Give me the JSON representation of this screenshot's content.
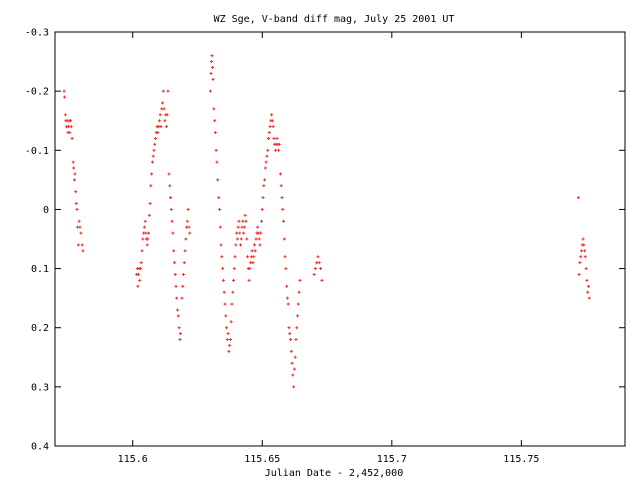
{
  "chart_data": {
    "type": "scatter",
    "title": "WZ Sge, V-band diff mag, July 25 2001 UT",
    "xlabel": "Julian Date - 2,452,000",
    "ylabel": "",
    "xlim": [
      115.57,
      115.79
    ],
    "ylim": [
      -0.3,
      0.4
    ],
    "y_inverted": true,
    "grid": false,
    "x_ticks": [
      115.6,
      115.65,
      115.7,
      115.75
    ],
    "x_tick_labels": [
      "115.6",
      "115.65",
      "115.7",
      "115.75"
    ],
    "y_ticks": [
      -0.3,
      -0.2,
      -0.1,
      0,
      0.1,
      0.2,
      0.3,
      0.4
    ],
    "y_tick_labels": [
      "-0.3",
      "-0.2",
      "-0.1",
      "0",
      "0.1",
      "0.2",
      "0.3",
      "0.4"
    ],
    "marker_color": "#e8322f",
    "series": [
      {
        "points": [
          [
            115.5735,
            -0.2
          ],
          [
            115.5737,
            -0.19
          ],
          [
            115.574,
            -0.16
          ],
          [
            115.5742,
            -0.15
          ],
          [
            115.5745,
            -0.14
          ],
          [
            115.5747,
            -0.15
          ],
          [
            115.575,
            -0.13
          ],
          [
            115.5752,
            -0.14
          ],
          [
            115.5755,
            -0.15
          ],
          [
            115.5757,
            -0.13
          ],
          [
            115.576,
            -0.15
          ],
          [
            115.5763,
            -0.14
          ],
          [
            115.5766,
            -0.12
          ],
          [
            115.577,
            -0.08
          ],
          [
            115.5772,
            -0.07
          ],
          [
            115.5775,
            -0.05
          ],
          [
            115.5777,
            -0.06
          ],
          [
            115.578,
            -0.03
          ],
          [
            115.5782,
            -0.01
          ],
          [
            115.5785,
            0.0
          ],
          [
            115.5787,
            0.03
          ],
          [
            115.579,
            0.06
          ],
          [
            115.5793,
            0.02
          ],
          [
            115.5796,
            0.03
          ],
          [
            115.58,
            0.04
          ],
          [
            115.5805,
            0.06
          ],
          [
            115.5808,
            0.07
          ],
          [
            115.6015,
            0.11
          ],
          [
            115.6018,
            0.1
          ],
          [
            115.602,
            0.13
          ],
          [
            115.6022,
            0.11
          ],
          [
            115.6025,
            0.1
          ],
          [
            115.6027,
            0.12
          ],
          [
            115.603,
            0.1
          ],
          [
            115.6033,
            0.09
          ],
          [
            115.6036,
            0.07
          ],
          [
            115.6039,
            0.05
          ],
          [
            115.6042,
            0.04
          ],
          [
            115.6045,
            0.03
          ],
          [
            115.6048,
            0.02
          ],
          [
            115.605,
            0.04
          ],
          [
            115.6053,
            0.05
          ],
          [
            115.6056,
            0.06
          ],
          [
            115.6058,
            0.05
          ],
          [
            115.6061,
            0.04
          ],
          [
            115.6064,
            0.01
          ],
          [
            115.6067,
            -0.01
          ],
          [
            115.607,
            -0.04
          ],
          [
            115.6073,
            -0.06
          ],
          [
            115.6076,
            -0.08
          ],
          [
            115.6079,
            -0.09
          ],
          [
            115.6082,
            -0.1
          ],
          [
            115.6085,
            -0.11
          ],
          [
            115.6088,
            -0.12
          ],
          [
            115.6091,
            -0.13
          ],
          [
            115.6094,
            -0.14
          ],
          [
            115.6097,
            -0.13
          ],
          [
            115.61,
            -0.14
          ],
          [
            115.6103,
            -0.15
          ],
          [
            115.6106,
            -0.16
          ],
          [
            115.6109,
            -0.14
          ],
          [
            115.6112,
            -0.17
          ],
          [
            115.6115,
            -0.18
          ],
          [
            115.6118,
            -0.2
          ],
          [
            115.6121,
            -0.17
          ],
          [
            115.6124,
            -0.15
          ],
          [
            115.6127,
            -0.16
          ],
          [
            115.613,
            -0.14
          ],
          [
            115.6133,
            -0.16
          ],
          [
            115.6136,
            -0.2
          ],
          [
            115.614,
            -0.06
          ],
          [
            115.6143,
            -0.04
          ],
          [
            115.6146,
            -0.02
          ],
          [
            115.6149,
            0.0
          ],
          [
            115.6152,
            0.02
          ],
          [
            115.6155,
            0.04
          ],
          [
            115.6158,
            0.07
          ],
          [
            115.6161,
            0.09
          ],
          [
            115.6164,
            0.11
          ],
          [
            115.6167,
            0.13
          ],
          [
            115.617,
            0.15
          ],
          [
            115.6173,
            0.17
          ],
          [
            115.6176,
            0.18
          ],
          [
            115.6179,
            0.2
          ],
          [
            115.6182,
            0.22
          ],
          [
            115.6184,
            0.21
          ],
          [
            115.619,
            0.15
          ],
          [
            115.6193,
            0.13
          ],
          [
            115.6196,
            0.11
          ],
          [
            115.6199,
            0.09
          ],
          [
            115.6202,
            0.07
          ],
          [
            115.6205,
            0.05
          ],
          [
            115.6208,
            0.03
          ],
          [
            115.6211,
            0.02
          ],
          [
            115.6214,
            0.0
          ],
          [
            115.6217,
            0.03
          ],
          [
            115.622,
            0.04
          ],
          [
            115.63,
            -0.2
          ],
          [
            115.6302,
            -0.23
          ],
          [
            115.6304,
            -0.25
          ],
          [
            115.6306,
            -0.26
          ],
          [
            115.6308,
            -0.24
          ],
          [
            115.631,
            -0.22
          ],
          [
            115.6313,
            -0.17
          ],
          [
            115.6316,
            -0.15
          ],
          [
            115.6319,
            -0.13
          ],
          [
            115.6322,
            -0.1
          ],
          [
            115.6325,
            -0.08
          ],
          [
            115.6328,
            -0.05
          ],
          [
            115.6332,
            -0.02
          ],
          [
            115.6335,
            0.0
          ],
          [
            115.6338,
            0.03
          ],
          [
            115.6341,
            0.06
          ],
          [
            115.6344,
            0.08
          ],
          [
            115.6347,
            0.1
          ],
          [
            115.635,
            0.12
          ],
          [
            115.6353,
            0.14
          ],
          [
            115.6356,
            0.16
          ],
          [
            115.6359,
            0.18
          ],
          [
            115.6362,
            0.2
          ],
          [
            115.6365,
            0.22
          ],
          [
            115.6368,
            0.21
          ],
          [
            115.6371,
            0.24
          ],
          [
            115.6374,
            0.23
          ],
          [
            115.6377,
            0.22
          ],
          [
            115.638,
            0.19
          ],
          [
            115.6383,
            0.16
          ],
          [
            115.6386,
            0.14
          ],
          [
            115.6389,
            0.12
          ],
          [
            115.6392,
            0.1
          ],
          [
            115.6395,
            0.08
          ],
          [
            115.6398,
            0.06
          ],
          [
            115.6401,
            0.04
          ],
          [
            115.6404,
            0.05
          ],
          [
            115.6407,
            0.03
          ],
          [
            115.641,
            0.02
          ],
          [
            115.6413,
            0.04
          ],
          [
            115.6416,
            0.06
          ],
          [
            115.6419,
            0.05
          ],
          [
            115.6422,
            0.03
          ],
          [
            115.6425,
            0.02
          ],
          [
            115.6428,
            0.04
          ],
          [
            115.6431,
            0.03
          ],
          [
            115.6434,
            0.01
          ],
          [
            115.6437,
            0.02
          ],
          [
            115.644,
            0.05
          ],
          [
            115.6443,
            0.08
          ],
          [
            115.6446,
            0.1
          ],
          [
            115.6449,
            0.12
          ],
          [
            115.6452,
            0.1
          ],
          [
            115.6455,
            0.09
          ],
          [
            115.6458,
            0.08
          ],
          [
            115.6461,
            0.07
          ],
          [
            115.6464,
            0.09
          ],
          [
            115.6467,
            0.08
          ],
          [
            115.647,
            0.06
          ],
          [
            115.6473,
            0.07
          ],
          [
            115.6476,
            0.05
          ],
          [
            115.6479,
            0.04
          ],
          [
            115.6482,
            0.03
          ],
          [
            115.6485,
            0.04
          ],
          [
            115.6488,
            0.05
          ],
          [
            115.6491,
            0.06
          ],
          [
            115.6494,
            0.04
          ],
          [
            115.6497,
            0.02
          ],
          [
            115.65,
            0.0
          ],
          [
            115.6503,
            -0.02
          ],
          [
            115.6506,
            -0.04
          ],
          [
            115.6509,
            -0.05
          ],
          [
            115.6512,
            -0.07
          ],
          [
            115.6515,
            -0.08
          ],
          [
            115.6518,
            -0.09
          ],
          [
            115.6521,
            -0.1
          ],
          [
            115.6524,
            -0.12
          ],
          [
            115.6527,
            -0.13
          ],
          [
            115.653,
            -0.14
          ],
          [
            115.6533,
            -0.15
          ],
          [
            115.6536,
            -0.16
          ],
          [
            115.6539,
            -0.15
          ],
          [
            115.6542,
            -0.14
          ],
          [
            115.6545,
            -0.12
          ],
          [
            115.6548,
            -0.11
          ],
          [
            115.6551,
            -0.1
          ],
          [
            115.6554,
            -0.11
          ],
          [
            115.6557,
            -0.12
          ],
          [
            115.656,
            -0.11
          ],
          [
            115.6563,
            -0.1
          ],
          [
            115.6566,
            -0.11
          ],
          [
            115.657,
            -0.06
          ],
          [
            115.6573,
            -0.04
          ],
          [
            115.6576,
            -0.02
          ],
          [
            115.6579,
            0.0
          ],
          [
            115.6582,
            0.02
          ],
          [
            115.6585,
            0.05
          ],
          [
            115.6588,
            0.08
          ],
          [
            115.6591,
            0.1
          ],
          [
            115.6594,
            0.13
          ],
          [
            115.6597,
            0.15
          ],
          [
            115.66,
            0.16
          ],
          [
            115.6603,
            0.2
          ],
          [
            115.6606,
            0.21
          ],
          [
            115.6609,
            0.22
          ],
          [
            115.6612,
            0.24
          ],
          [
            115.6615,
            0.26
          ],
          [
            115.6618,
            0.28
          ],
          [
            115.6621,
            0.3
          ],
          [
            115.6624,
            0.27
          ],
          [
            115.6627,
            0.25
          ],
          [
            115.663,
            0.22
          ],
          [
            115.6633,
            0.2
          ],
          [
            115.6636,
            0.18
          ],
          [
            115.6639,
            0.16
          ],
          [
            115.6642,
            0.14
          ],
          [
            115.6645,
            0.12
          ],
          [
            115.67,
            0.11
          ],
          [
            115.6705,
            0.1
          ],
          [
            115.671,
            0.09
          ],
          [
            115.6715,
            0.08
          ],
          [
            115.672,
            0.09
          ],
          [
            115.6725,
            0.1
          ],
          [
            115.673,
            0.12
          ],
          [
            115.772,
            -0.02
          ],
          [
            115.7723,
            0.11
          ],
          [
            115.7726,
            0.09
          ],
          [
            115.7729,
            0.08
          ],
          [
            115.7732,
            0.07
          ],
          [
            115.7735,
            0.06
          ],
          [
            115.7738,
            0.05
          ],
          [
            115.7741,
            0.06
          ],
          [
            115.7744,
            0.07
          ],
          [
            115.7747,
            0.08
          ],
          [
            115.775,
            0.1
          ],
          [
            115.7753,
            0.12
          ],
          [
            115.7756,
            0.14
          ],
          [
            115.7759,
            0.13
          ],
          [
            115.7762,
            0.15
          ]
        ]
      }
    ]
  }
}
